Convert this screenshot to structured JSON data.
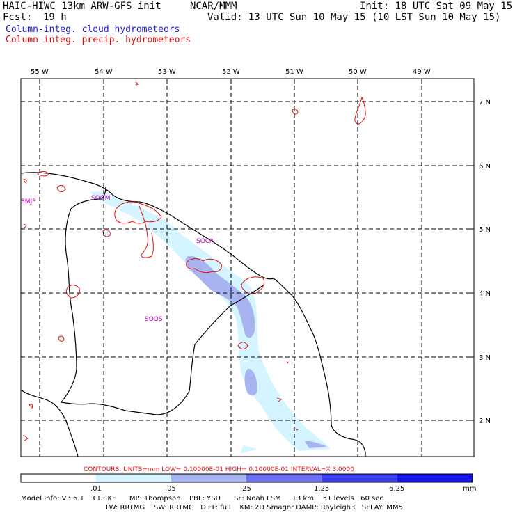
{
  "header": {
    "title": "HAIC-HIWC 13km ARW-GFS init",
    "org": "NCAR/MMM",
    "init": "Init: 18 UTC Sat 09 May 15",
    "fcst_label": "Fcst:",
    "fcst_value": "19 h",
    "valid": "Valid: 13 UTC Sun 10 May 15 (10 LST Sun 10 May 15)",
    "field1": "Column-integ. cloud hydrometeors",
    "field2": "Column-integ. precip. hydrometeors",
    "field1_color": "#1e1edc",
    "field2_color": "#e01010"
  },
  "map": {
    "lon_labels": [
      "55 W",
      "54 W",
      "53 W",
      "52 W",
      "51 W",
      "50 W",
      "49 W"
    ],
    "lat_labels": [
      "7 N",
      "6 N",
      "5 N",
      "4 N",
      "3 N",
      "2 N"
    ],
    "stations": [
      "SMJP",
      "SOGM",
      "SOCA",
      "SOOS"
    ],
    "station_color": "#c000c0",
    "contour_color": "#e01010"
  },
  "contour_info": "CONTOURS:  UNITS=mm  LOW= 0.10000E-01  HIGH= 0.10000E-01  INTERVAL=X  3.0000",
  "colorbar": {
    "ticks": [
      ".01",
      ".05",
      ".25",
      "1.25",
      "6.25"
    ],
    "unit": "mm",
    "colors": [
      "#ffffff",
      "#d4f4ff",
      "#a8b4f0",
      "#6e6ef0",
      "#3c3ce8",
      "#1414e6"
    ]
  },
  "model_info": {
    "line1": "Model Info: V3.6.1    CU: KF      MP: Thompson    PBL: YSU      SF: Noah LSM     13 km    51 levels   60 sec",
    "line2": "LW: RRTMG    SW: RRTMG   DIFF: full    KM: 2D Smagor DAMP: Rayleigh3   SFLAY: MM5"
  }
}
